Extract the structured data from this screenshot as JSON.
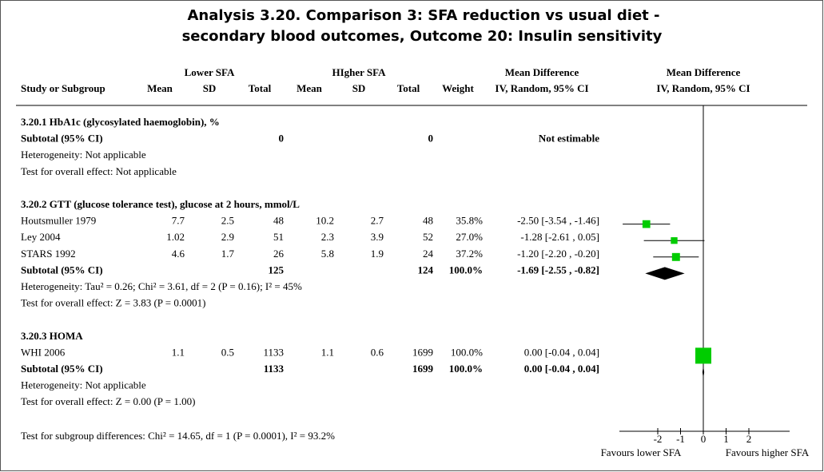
{
  "title": [
    "Analysis 3.20.   Comparison 3: SFA reduction vs usual diet -",
    "secondary blood outcomes, Outcome 20: Insulin sensitivity"
  ],
  "header": {
    "group1": "Lower SFA",
    "group2": "HIgher SFA",
    "md_table": "Mean Difference",
    "md_plot": "Mean Difference",
    "columns": [
      "Study or Subgroup",
      "Mean",
      "SD",
      "Total",
      "Mean",
      "SD",
      "Total",
      "Weight",
      "IV, Random, 95% CI",
      "IV, Random, 95% CI"
    ]
  },
  "subgroups": [
    {
      "title": "3.20.1 HbA1c (glycosylated haemoglobin), %",
      "studies": [],
      "subtotal": {
        "label": "Subtotal (95% CI)",
        "n1": 0,
        "n2": 0,
        "ci": {
          "label": "Not estimable"
        }
      },
      "heterogeneity": "Heterogeneity: Not applicable",
      "overall": "Test for overall effect: Not applicable"
    },
    {
      "title": "3.20.2 GTT (glucose tolerance test), glucose at 2 hours, mmol/L",
      "studies": [
        {
          "name": "Houtsmuller 1979",
          "mean1": 7.7,
          "sd1": 2.5,
          "n1": 48,
          "mean2": 10.2,
          "sd2": 2.7,
          "n2": 48,
          "weight": {
            "value": 35.8,
            "label": "35.8%"
          },
          "ci": {
            "label": "-2.50 [-3.54 , -1.46]",
            "md": -2.5,
            "lower": -3.54,
            "upper": -1.46
          }
        },
        {
          "name": "Ley 2004",
          "mean1": 1.02,
          "sd1": 2.9,
          "n1": 51,
          "mean2": 2.3,
          "sd2": 3.9,
          "n2": 52,
          "weight": {
            "value": 27.0,
            "label": "27.0%"
          },
          "ci": {
            "label": "-1.28 [-2.61 , 0.05]",
            "md": -1.28,
            "lower": -2.61,
            "upper": 0.05
          }
        },
        {
          "name": "STARS 1992",
          "mean1": 4.6,
          "sd1": 1.7,
          "n1": 26,
          "mean2": 5.8,
          "sd2": 1.9,
          "n2": 24,
          "weight": {
            "value": 37.2,
            "label": "37.2%"
          },
          "ci": {
            "label": "-1.20 [-2.20 , -0.20]",
            "md": -1.2,
            "lower": -2.2,
            "upper": -0.2
          }
        }
      ],
      "subtotal": {
        "label": "Subtotal (95% CI)",
        "n1": 125,
        "n2": 124,
        "weight": {
          "value": 100.0,
          "label": "100.0%"
        },
        "ci": {
          "label": "-1.69 [-2.55 , -0.82]",
          "md": -1.69,
          "lower": -2.55,
          "upper": -0.82
        }
      },
      "heterogeneity": "Heterogeneity: Tau² = 0.26; Chi² = 3.61, df = 2 (P = 0.16); I² = 45%",
      "overall": "Test for overall effect: Z = 3.83 (P = 0.0001)"
    },
    {
      "title": "3.20.3 HOMA",
      "studies": [
        {
          "name": "WHI 2006",
          "mean1": 1.1,
          "sd1": 0.5,
          "n1": 1133,
          "mean2": 1.1,
          "sd2": 0.6,
          "n2": 1699,
          "weight": {
            "value": 100.0,
            "label": "100.0%"
          },
          "ci": {
            "label": "0.00 [-0.04 , 0.04]",
            "md": 0.0,
            "lower": -0.04,
            "upper": 0.04
          }
        }
      ],
      "subtotal": {
        "label": "Subtotal (95% CI)",
        "n1": 1133,
        "n2": 1699,
        "weight": {
          "value": 100.0,
          "label": "100.0%"
        },
        "ci": {
          "label": "0.00 [-0.04 , 0.04]",
          "md": 0.0,
          "lower": -0.04,
          "upper": 0.04
        }
      },
      "heterogeneity": "Heterogeneity: Not applicable",
      "overall": "Test for overall effect: Z = 0.00 (P = 1.00)"
    }
  ],
  "subgroup_differences": "Test for subgroup differences: Chi² = 14.65, df = 1 (P = 0.0001), I² = 93.2%",
  "plot": {
    "xlim": [
      -4,
      4
    ],
    "xticks": [
      -2,
      -1,
      0,
      1,
      2
    ],
    "left_label": "Favours lower SFA",
    "right_label": "Favours higher SFA",
    "color": "#00cc00"
  }
}
